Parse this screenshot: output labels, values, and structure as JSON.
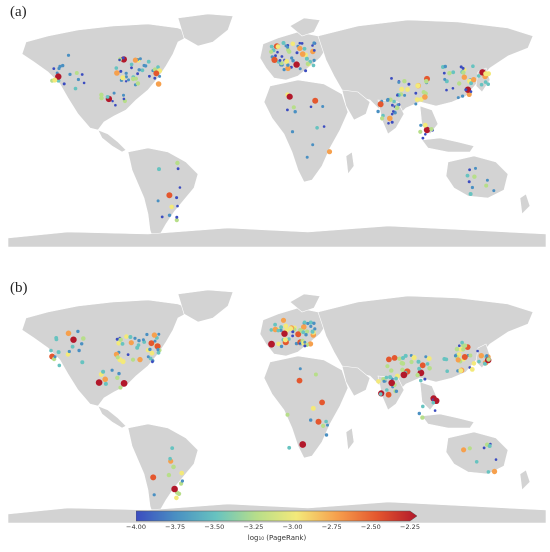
{
  "panels": [
    {
      "label": "(a)"
    },
    {
      "label": "(b)"
    }
  ],
  "colors": {
    "ocean": "#ffffff",
    "land": "#d3d3d3",
    "border": "#ffffff"
  },
  "colorbar": {
    "title": "log₁₀ (PageRank)",
    "range": [
      -4.0,
      -2.25
    ],
    "ticks": [
      "−4.00",
      "−3.75",
      "−3.50",
      "−3.25",
      "−3.00",
      "−2.75",
      "−2.50",
      "−2.25"
    ],
    "stops": [
      "#3b4cc0",
      "#4a90c2",
      "#67c3c0",
      "#b7de8a",
      "#f3e97a",
      "#f6a04d",
      "#e4572e",
      "#b2182b"
    ]
  }
}
